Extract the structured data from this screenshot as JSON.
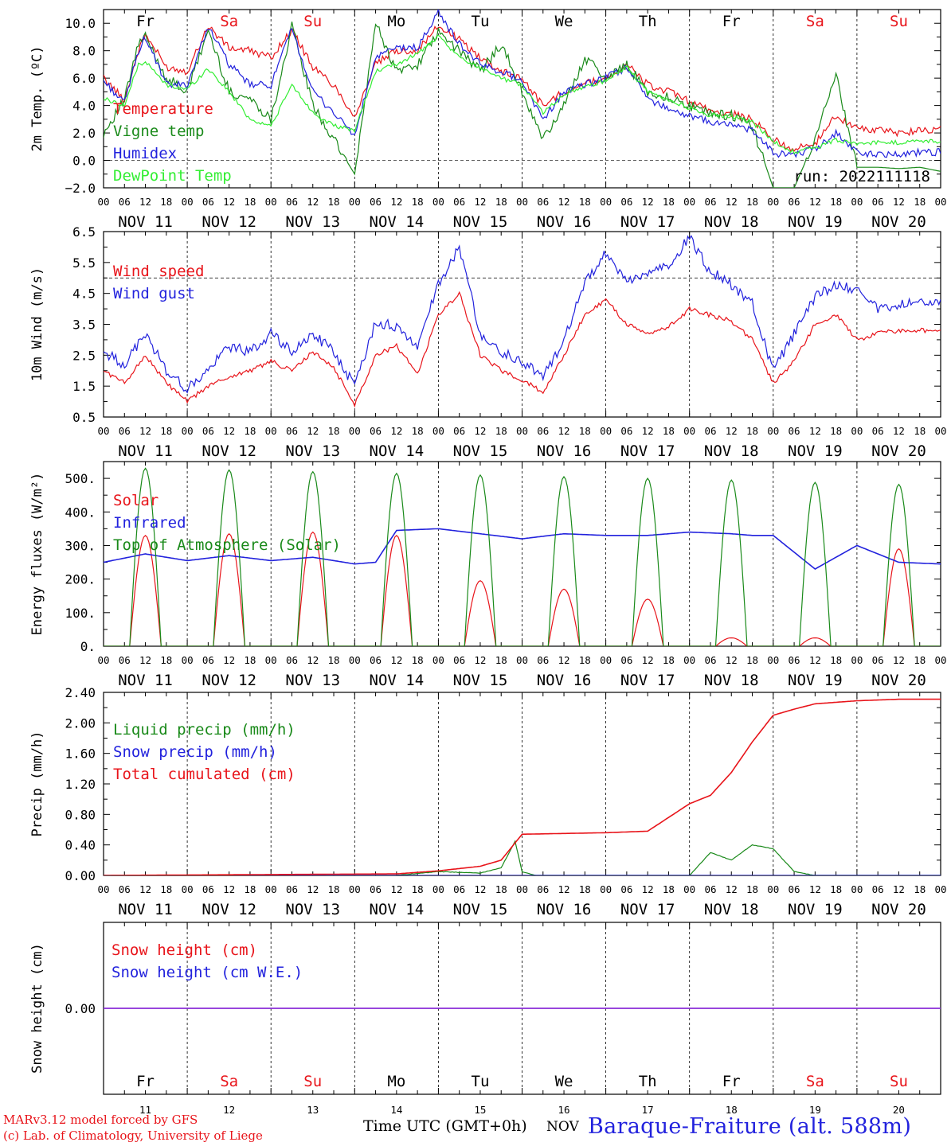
{
  "days": [
    "NOV 11",
    "NOV 12",
    "NOV 13",
    "NOV 14",
    "NOV 15",
    "NOV 16",
    "NOV 17",
    "NOV 18",
    "NOV 19",
    "NOV 20"
  ],
  "day_hours": [
    "00",
    "06",
    "12",
    "18"
  ],
  "final_hour": "00",
  "weekdays": [
    {
      "label": "Fr",
      "weekend": false
    },
    {
      "label": "Sa",
      "weekend": true
    },
    {
      "label": "Su",
      "weekend": true
    },
    {
      "label": "Mo",
      "weekend": false
    },
    {
      "label": "Tu",
      "weekend": false
    },
    {
      "label": "We",
      "weekend": false
    },
    {
      "label": "Th",
      "weekend": false
    },
    {
      "label": "Fr",
      "weekend": false
    },
    {
      "label": "Sa",
      "weekend": true
    },
    {
      "label": "Su",
      "weekend": true
    }
  ],
  "day_numbers": [
    "11",
    "12",
    "13",
    "14",
    "15",
    "16",
    "17",
    "18",
    "19",
    "20"
  ],
  "colors": {
    "red": "#e8141a",
    "green": "#1a8a1a",
    "blue": "#2222dd",
    "lightgreen": "#33ee33",
    "purple": "#8a2be2"
  },
  "run_label": "run: 2022111118",
  "x_axis_title": "Time UTC (GMT+0h)",
  "x_axis_unit": "NOV",
  "station_label": "Baraque-Fraiture (alt. 588m)",
  "credits": [
    "MARv3.12 model forced by GFS",
    "(c) Lab. of Climatology, University of Liege"
  ],
  "chart_data": [
    {
      "type": "line",
      "ylabel": "2m Temp. (ºC)",
      "ylim": [
        -2,
        11
      ],
      "yticks": [
        "−2.0",
        "0.0",
        "2.0",
        "4.0",
        "6.0",
        "8.0",
        "10.0"
      ],
      "ytick_values": [
        -2,
        0,
        2,
        4,
        6,
        8,
        10
      ],
      "ref_line": 0,
      "x_unit": "hours since NOV 11 00 UTC",
      "series": [
        {
          "name": "Temperature",
          "color": "red",
          "x": [
            0,
            6,
            10,
            12,
            18,
            24,
            30,
            36,
            42,
            48,
            54,
            60,
            66,
            72,
            78,
            84,
            90,
            96,
            102,
            108,
            114,
            120,
            126,
            132,
            138,
            144,
            150,
            156,
            162,
            168,
            174,
            180,
            186,
            192,
            198,
            204,
            210,
            216,
            222,
            228,
            234,
            240
          ],
          "values": [
            6.0,
            4.4,
            8.0,
            9.2,
            6.8,
            6.5,
            9.8,
            8.2,
            8.0,
            7.5,
            9.5,
            6.8,
            5.5,
            3.2,
            7.0,
            8.0,
            8.0,
            9.8,
            8.8,
            7.5,
            6.5,
            6.0,
            4.0,
            5.0,
            5.6,
            6.0,
            7.0,
            5.5,
            5.0,
            4.3,
            3.6,
            3.4,
            3.0,
            1.5,
            0.8,
            1.2,
            3.3,
            2.3,
            2.2,
            2.0,
            2.2,
            2.3
          ]
        },
        {
          "name": "Vigne temp",
          "color": "green",
          "x": [
            0,
            6,
            10,
            12,
            18,
            24,
            30,
            36,
            42,
            48,
            54,
            60,
            66,
            72,
            78,
            84,
            90,
            96,
            102,
            108,
            114,
            120,
            126,
            132,
            138,
            144,
            150,
            156,
            162,
            168,
            174,
            180,
            186,
            192,
            198,
            204,
            210,
            216,
            222,
            228,
            234,
            240
          ],
          "values": [
            2.0,
            4.4,
            8.5,
            9.0,
            6.0,
            5.0,
            9.5,
            5.0,
            4.5,
            3.0,
            9.8,
            4.0,
            1.5,
            -1.0,
            10.0,
            6.5,
            7.0,
            9.3,
            8.0,
            6.5,
            8.5,
            5.0,
            1.5,
            4.0,
            7.5,
            6.0,
            7.0,
            5.0,
            4.6,
            4.0,
            3.4,
            3.3,
            2.5,
            -2.0,
            -2.0,
            1.5,
            6.2,
            -0.5,
            -0.5,
            -0.6,
            -0.5,
            -0.8
          ]
        },
        {
          "name": "Humidex",
          "color": "blue",
          "x": [
            0,
            6,
            10,
            12,
            18,
            24,
            30,
            36,
            42,
            48,
            54,
            60,
            66,
            72,
            78,
            84,
            90,
            96,
            102,
            108,
            114,
            120,
            126,
            132,
            138,
            144,
            150,
            156,
            162,
            168,
            174,
            180,
            186,
            192,
            198,
            204,
            210,
            216,
            222,
            228,
            234,
            240
          ],
          "values": [
            5.8,
            4.2,
            8.0,
            9.0,
            5.5,
            5.5,
            9.8,
            7.0,
            5.5,
            5.5,
            9.6,
            5.0,
            3.5,
            1.8,
            7.5,
            8.2,
            8.2,
            10.8,
            8.5,
            7.0,
            6.5,
            5.8,
            3.0,
            5.0,
            5.5,
            6.0,
            6.8,
            4.5,
            3.8,
            3.2,
            2.8,
            2.6,
            2.2,
            0.5,
            0.5,
            0.8,
            2.0,
            0.6,
            0.4,
            0.5,
            0.6,
            0.6
          ]
        },
        {
          "name": "DewPoint Temp",
          "color": "lightgreen",
          "x": [
            0,
            6,
            10,
            12,
            18,
            24,
            30,
            36,
            42,
            48,
            54,
            60,
            66,
            72,
            78,
            84,
            90,
            96,
            102,
            108,
            114,
            120,
            126,
            132,
            138,
            144,
            150,
            156,
            162,
            168,
            174,
            180,
            186,
            192,
            198,
            204,
            210,
            216,
            222,
            228,
            234,
            240
          ],
          "values": [
            4.5,
            4.0,
            7.0,
            7.2,
            5.5,
            5.2,
            6.7,
            5.0,
            3.0,
            2.5,
            5.5,
            3.5,
            2.5,
            2.2,
            6.5,
            7.0,
            7.8,
            9.0,
            7.5,
            6.8,
            6.0,
            5.5,
            3.5,
            4.8,
            5.4,
            5.8,
            6.8,
            5.0,
            4.4,
            3.8,
            3.3,
            3.2,
            2.8,
            1.4,
            0.6,
            0.9,
            1.5,
            1.2,
            1.3,
            1.3,
            1.4,
            1.4
          ]
        }
      ]
    },
    {
      "type": "line",
      "ylabel": "10m Wind (m/s)",
      "ylim": [
        0.5,
        6.5
      ],
      "yticks": [
        "0.5",
        "1.5",
        "2.5",
        "3.5",
        "4.5",
        "5.5",
        "6.5"
      ],
      "ytick_values": [
        0.5,
        1.5,
        2.5,
        3.5,
        4.5,
        5.5,
        6.5
      ],
      "ref_line": 5,
      "x_unit": "hours since NOV 11 00 UTC",
      "series": [
        {
          "name": "Wind speed",
          "color": "red",
          "x": [
            0,
            6,
            12,
            18,
            24,
            30,
            36,
            42,
            48,
            54,
            60,
            66,
            72,
            78,
            84,
            90,
            96,
            102,
            108,
            114,
            120,
            126,
            132,
            138,
            144,
            150,
            156,
            162,
            168,
            174,
            180,
            186,
            192,
            198,
            204,
            210,
            216,
            222,
            228,
            234,
            240
          ],
          "values": [
            2.0,
            1.6,
            2.5,
            1.6,
            1.0,
            1.5,
            1.8,
            2.0,
            2.3,
            2.0,
            2.6,
            2.1,
            0.9,
            2.5,
            2.8,
            1.9,
            3.8,
            4.5,
            2.5,
            2.0,
            1.7,
            1.3,
            2.5,
            3.8,
            4.3,
            3.5,
            3.2,
            3.4,
            4.0,
            3.8,
            3.6,
            3.0,
            1.6,
            2.3,
            3.5,
            3.8,
            3.0,
            3.2,
            3.3,
            3.3,
            3.3
          ]
        },
        {
          "name": "Wind gust",
          "color": "blue",
          "x": [
            0,
            6,
            12,
            18,
            24,
            30,
            36,
            42,
            48,
            54,
            60,
            66,
            72,
            78,
            84,
            90,
            96,
            102,
            108,
            114,
            120,
            126,
            132,
            138,
            144,
            150,
            156,
            162,
            168,
            174,
            180,
            186,
            192,
            198,
            204,
            210,
            216,
            222,
            228,
            234,
            240
          ],
          "values": [
            2.6,
            2.2,
            3.2,
            2.0,
            1.4,
            2.0,
            2.8,
            2.6,
            3.2,
            2.6,
            3.2,
            2.6,
            1.5,
            3.6,
            3.4,
            2.8,
            4.8,
            6.0,
            3.2,
            2.6,
            2.3,
            1.8,
            3.0,
            4.8,
            5.8,
            4.8,
            5.2,
            5.4,
            6.3,
            5.2,
            4.8,
            4.2,
            2.0,
            3.2,
            4.4,
            4.8,
            4.6,
            4.0,
            4.1,
            4.2,
            4.2
          ]
        }
      ]
    },
    {
      "type": "line",
      "ylabel": "Energy fluxes (W/m²)",
      "ylim": [
        0,
        550
      ],
      "yticks": [
        "0.",
        "100.",
        "200.",
        "300.",
        "400.",
        "500."
      ],
      "ytick_values": [
        0,
        100,
        200,
        300,
        400,
        500
      ],
      "x_unit": "hours since NOV 11 00 UTC",
      "series": [
        {
          "name": "Solar",
          "color": "red",
          "diurnal_peak_hour": 12,
          "daily_peak_values": [
            330,
            335,
            340,
            330,
            195,
            170,
            140,
            25,
            25,
            290
          ]
        },
        {
          "name": "Infrared",
          "color": "blue",
          "x": [
            0,
            12,
            24,
            36,
            48,
            60,
            72,
            78,
            84,
            96,
            108,
            120,
            132,
            144,
            156,
            168,
            180,
            186,
            192,
            204,
            216,
            228,
            240
          ],
          "values": [
            250,
            275,
            255,
            270,
            255,
            265,
            245,
            250,
            345,
            350,
            335,
            320,
            335,
            330,
            330,
            340,
            335,
            330,
            330,
            230,
            300,
            250,
            245
          ]
        },
        {
          "name": "Top of Atmosphere (Solar)",
          "color": "green",
          "diurnal_peak_hour": 12,
          "daily_peak_values": [
            530,
            525,
            520,
            515,
            510,
            505,
            500,
            495,
            488,
            482
          ]
        }
      ]
    },
    {
      "type": "line",
      "ylabel": "Precip (mm/h)",
      "ylim": [
        0,
        2.4
      ],
      "yticks": [
        "0.00",
        "0.40",
        "0.80",
        "1.20",
        "1.60",
        "2.00",
        "2.40"
      ],
      "ytick_values": [
        0,
        0.4,
        0.8,
        1.2,
        1.6,
        2.0,
        2.4
      ],
      "x_unit": "hours since NOV 11 00 UTC",
      "series": [
        {
          "name": "Liquid precip (mm/h)",
          "color": "green",
          "x": [
            0,
            84,
            96,
            108,
            114,
            118,
            120,
            124,
            168,
            174,
            180,
            186,
            192,
            198,
            204,
            216,
            240
          ],
          "values": [
            0,
            0,
            0.05,
            0.03,
            0.1,
            0.45,
            0.05,
            0,
            0,
            0.3,
            0.2,
            0.4,
            0.35,
            0.05,
            0,
            0,
            0
          ]
        },
        {
          "name": "Snow precip (mm/h)",
          "color": "blue",
          "x": [
            0,
            240
          ],
          "values": [
            0,
            0
          ]
        },
        {
          "name": "Total cumulated (cm)",
          "color": "red",
          "x": [
            0,
            84,
            96,
            108,
            114,
            120,
            132,
            144,
            156,
            168,
            174,
            180,
            186,
            192,
            198,
            204,
            216,
            228,
            240
          ],
          "values": [
            0,
            0.02,
            0.06,
            0.12,
            0.2,
            0.54,
            0.55,
            0.56,
            0.58,
            0.94,
            1.05,
            1.35,
            1.75,
            2.1,
            2.18,
            2.25,
            2.29,
            2.31,
            2.31
          ]
        }
      ]
    },
    {
      "type": "line",
      "ylabel": "Snow height (cm)",
      "yticks": [
        "0.00"
      ],
      "ytick_values": [
        0
      ],
      "x_unit": "hours since NOV 11 00 UTC",
      "series": [
        {
          "name": "Snow height (cm)",
          "color": "red",
          "x": [
            0,
            240
          ],
          "values": [
            0,
            0
          ]
        },
        {
          "name": "Snow height (cm W.E.)",
          "color": "blue",
          "x": [
            0,
            240
          ],
          "values": [
            0,
            0
          ]
        }
      ]
    }
  ]
}
